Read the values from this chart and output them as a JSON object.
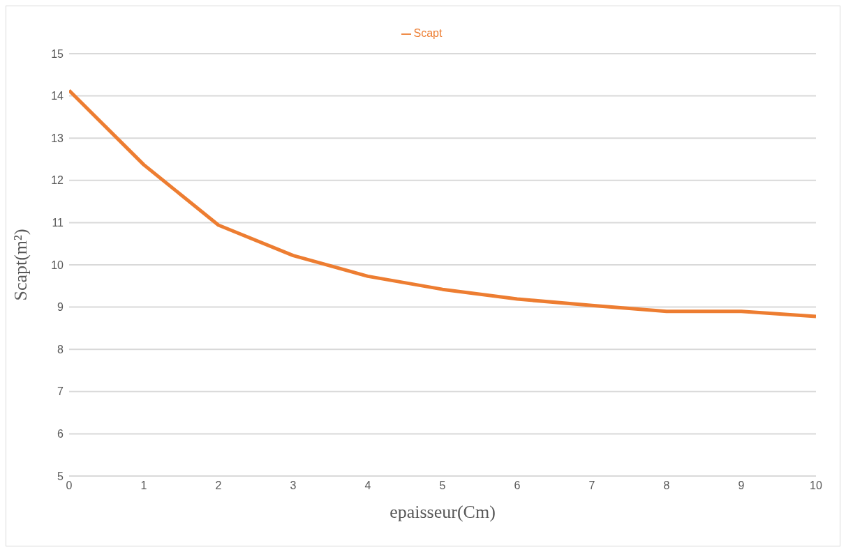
{
  "chart_data": {
    "type": "line",
    "xlabel": "epaisseur(Cm)",
    "ylabel": "Scapt(m²)",
    "x": [
      0,
      1,
      2,
      3,
      4,
      5,
      6,
      7,
      8,
      9,
      10
    ],
    "series": [
      {
        "name": "Scapt",
        "color": "#ed7d31",
        "values": [
          14.13,
          12.37,
          10.94,
          10.22,
          9.73,
          9.42,
          9.19,
          9.04,
          8.9,
          8.9,
          8.78
        ]
      }
    ],
    "xlim": [
      0,
      10
    ],
    "xticks": [
      0,
      1,
      2,
      3,
      4,
      5,
      6,
      7,
      8,
      9,
      10
    ],
    "ylim": [
      5,
      15
    ],
    "yticks": [
      5,
      6,
      7,
      8,
      9,
      10,
      11,
      12,
      13,
      14,
      15
    ],
    "grid": "y",
    "legend": "top",
    "marker": "none",
    "line_style": "solid"
  }
}
